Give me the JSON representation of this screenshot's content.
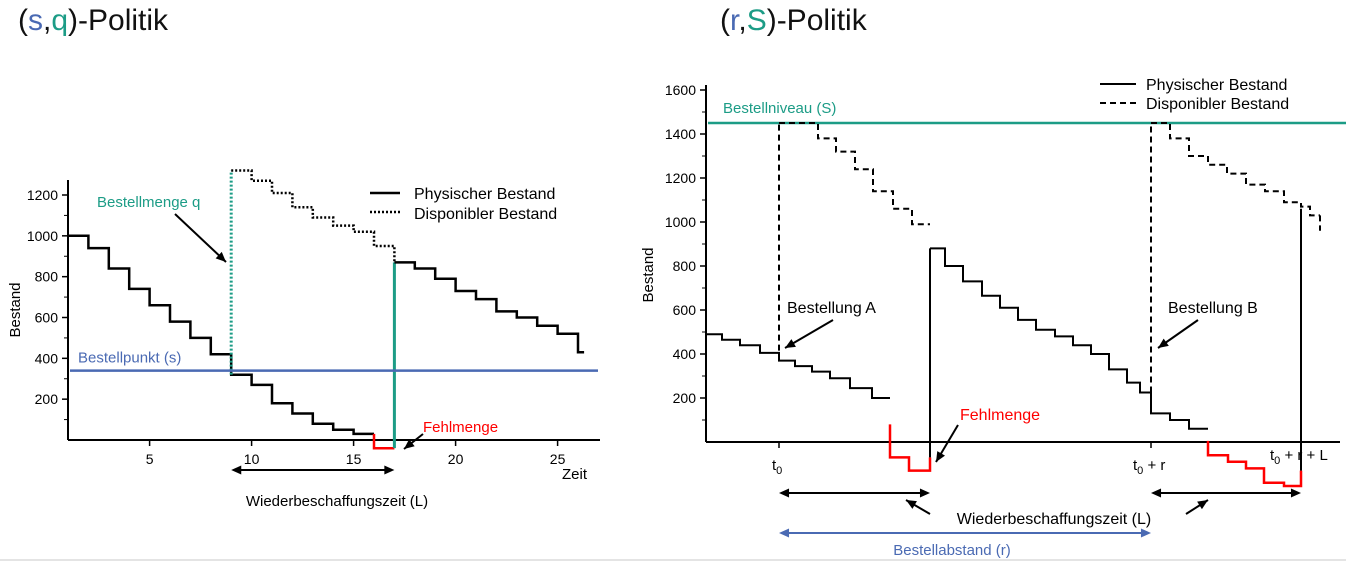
{
  "colors": {
    "s_blue": "#4a6ab3",
    "teal": "#1c9c86",
    "red": "#ff0000",
    "black": "#000000",
    "arrow_blue": "#4a6ab3"
  },
  "left_title": {
    "open": "(",
    "s": "s",
    "comma": ",",
    "q": "q",
    "rest": ")-Politik"
  },
  "right_title": {
    "open": "(",
    "r": "r",
    "comma": ",",
    "S": "S",
    "rest": ")-Politik"
  },
  "chart_data": [
    {
      "type": "line",
      "xlabel": "Zeit",
      "ylabel": "Bestand",
      "xlim": [
        1,
        27
      ],
      "ylim": [
        0,
        1300
      ],
      "x_ticks": [
        5,
        10,
        15,
        20,
        25
      ],
      "y_ticks": [
        200,
        400,
        600,
        800,
        1000,
        1200
      ],
      "legend": {
        "position": "top-right",
        "entries": [
          {
            "label": "Physischer Bestand",
            "style": "solid"
          },
          {
            "label": "Disponibler Bestand",
            "style": "dotted"
          }
        ]
      },
      "series": [
        {
          "name": "Physischer Bestand",
          "steps_before_reorder": [
            [
              1,
              1000
            ],
            [
              2,
              940
            ],
            [
              3,
              840
            ],
            [
              4,
              740
            ],
            [
              5,
              660
            ],
            [
              6,
              580
            ],
            [
              7,
              500
            ],
            [
              8,
              420
            ],
            [
              9,
              320
            ],
            [
              10,
              270
            ],
            [
              11,
              180
            ],
            [
              12,
              130
            ],
            [
              13,
              80
            ],
            [
              14,
              50
            ],
            [
              15,
              30
            ]
          ],
          "shortage": [
            [
              16,
              -40
            ],
            [
              17,
              -40
            ]
          ],
          "steps_after_delivery": [
            [
              17,
              870
            ],
            [
              18,
              840
            ],
            [
              19,
              790
            ],
            [
              20,
              730
            ],
            [
              21,
              690
            ],
            [
              22,
              630
            ],
            [
              23,
              600
            ],
            [
              24,
              560
            ],
            [
              25,
              520
            ],
            [
              26,
              430
            ]
          ]
        },
        {
          "name": "Disponibler Bestand",
          "steps": [
            [
              9,
              1320
            ],
            [
              10,
              1270
            ],
            [
              11,
              1210
            ],
            [
              12,
              1140
            ],
            [
              13,
              1090
            ],
            [
              14,
              1050
            ],
            [
              15,
              1020
            ],
            [
              16,
              950
            ],
            [
              17,
              870
            ]
          ]
        }
      ],
      "reorder_point": 340,
      "order_time": 9,
      "delivery_time": 17,
      "annotations": {
        "bestellmenge": "Bestellmenge q",
        "bestellpunkt": "Bestellpunkt (s)",
        "fehlmenge": "Fehlmenge",
        "wbz": "Wiederbeschaffungszeit (L)"
      }
    },
    {
      "type": "line",
      "xlabel": "",
      "ylabel": "Bestand",
      "ylim": [
        0,
        1600
      ],
      "y_ticks": [
        200,
        400,
        600,
        800,
        1000,
        1200,
        1400,
        1600
      ],
      "x_tick_labels": [
        "t0",
        "t0 + r",
        "t0 + r + L"
      ],
      "legend": {
        "position": "top-right",
        "entries": [
          {
            "label": "Physischer Bestand",
            "style": "solid"
          },
          {
            "label": "Disponibler Bestand",
            "style": "dashed"
          }
        ]
      },
      "order_level": 1450,
      "annotations": {
        "bestellniveau": "Bestellniveau (S)",
        "bestellung_a": "Bestellung A",
        "bestellung_b": "Bestellung B",
        "fehlmenge": "Fehlmenge",
        "wbz": "Wiederbeschaffungszeit (L)",
        "bestellabstand": "Bestellabstand (r)"
      },
      "tick_labels": {
        "t0_main": "t",
        "t0_sub": "0",
        "t0r_main": "t",
        "t0r_sub": "0",
        "t0r_rest": " + r",
        "t0rl_main": "t",
        "t0rl_sub": "0",
        "t0rl_rest": " + r + L"
      }
    }
  ]
}
